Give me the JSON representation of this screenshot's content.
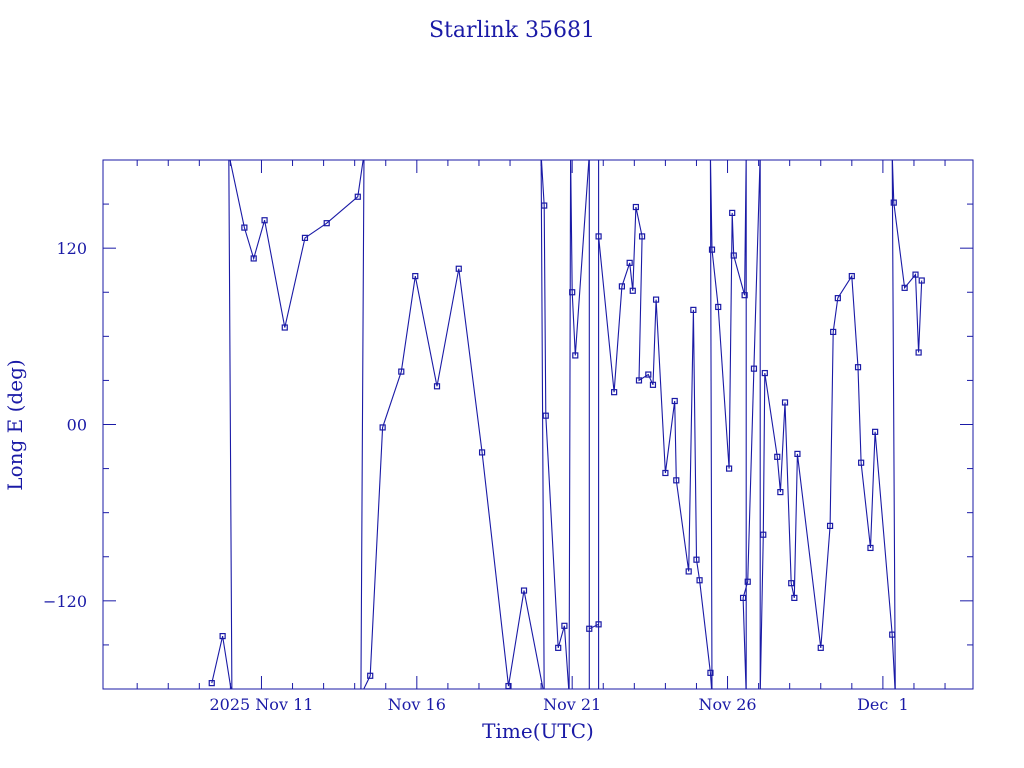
{
  "chart_data": {
    "type": "line",
    "title": "Starlink 35681",
    "xlabel": "Time(UTC)",
    "ylabel": "Long E (deg)",
    "x_tick_labels": [
      "2025 Nov 11",
      "Nov 16",
      "Nov 21",
      "Nov 26",
      "Dec  1"
    ],
    "x_tick_values": [
      0,
      5,
      10,
      15,
      20
    ],
    "x_unit": "days since 2025 Nov 11",
    "xlim": [
      -5.1,
      22.9
    ],
    "y_tick_labels": [
      "120",
      "00",
      "−120"
    ],
    "y_tick_values": [
      120,
      0,
      -120
    ],
    "ylim": [
      -180,
      180
    ],
    "grid": false,
    "color": "#1a1aa6",
    "series": [
      {
        "name": "",
        "points": [
          [
            -1.6,
            -176
          ],
          [
            -1.25,
            -144
          ],
          [
            -0.95,
            -184
          ],
          [
            -1.05,
            184
          ],
          [
            -0.55,
            134
          ],
          [
            -0.25,
            113
          ],
          [
            0.1,
            139
          ],
          [
            0.75,
            66
          ],
          [
            1.4,
            127
          ],
          [
            2.1,
            137
          ],
          [
            3.1,
            155
          ],
          [
            3.3,
            184
          ],
          [
            3.2,
            -184
          ],
          [
            3.5,
            -171
          ],
          [
            3.9,
            -2
          ],
          [
            4.5,
            36
          ],
          [
            4.95,
            101
          ],
          [
            5.65,
            26
          ],
          [
            6.35,
            106
          ],
          [
            7.1,
            -19
          ],
          [
            7.95,
            -178
          ],
          [
            8.45,
            -113
          ],
          [
            9.1,
            -184
          ],
          [
            9.0,
            184
          ],
          [
            9.1,
            149
          ],
          [
            9.15,
            6
          ],
          [
            9.55,
            -152
          ],
          [
            9.75,
            -137
          ],
          [
            9.9,
            -184
          ],
          [
            9.95,
            184
          ],
          [
            10.0,
            90
          ],
          [
            10.1,
            47
          ],
          [
            10.55,
            184
          ],
          [
            10.55,
            -184
          ],
          [
            10.55,
            -139
          ],
          [
            10.85,
            -136
          ],
          [
            10.85,
            -184
          ],
          [
            10.85,
            184
          ],
          [
            10.85,
            128
          ],
          [
            11.35,
            22
          ],
          [
            11.6,
            94
          ],
          [
            11.85,
            110
          ],
          [
            11.95,
            91
          ],
          [
            12.05,
            148
          ],
          [
            12.25,
            128
          ],
          [
            12.15,
            30
          ],
          [
            12.45,
            34
          ],
          [
            12.6,
            27
          ],
          [
            12.7,
            85
          ],
          [
            13.0,
            -33
          ],
          [
            13.3,
            16
          ],
          [
            13.35,
            -38
          ],
          [
            13.75,
            -100
          ],
          [
            13.9,
            78
          ],
          [
            14.0,
            -92
          ],
          [
            14.1,
            -106
          ],
          [
            14.45,
            -169
          ],
          [
            14.5,
            -184
          ],
          [
            14.45,
            184
          ],
          [
            14.5,
            119
          ],
          [
            14.7,
            80
          ],
          [
            15.05,
            -30
          ],
          [
            15.15,
            144
          ],
          [
            15.2,
            115
          ],
          [
            15.55,
            88
          ],
          [
            15.6,
            184
          ],
          [
            15.6,
            -184
          ],
          [
            15.5,
            -118
          ],
          [
            15.65,
            -107
          ],
          [
            15.85,
            38
          ],
          [
            16.05,
            184
          ],
          [
            16.05,
            -184
          ],
          [
            16.15,
            -75
          ],
          [
            16.2,
            35
          ],
          [
            16.6,
            -22
          ],
          [
            16.7,
            -46
          ],
          [
            16.85,
            15
          ],
          [
            17.05,
            -108
          ],
          [
            17.15,
            -118
          ],
          [
            17.25,
            -20
          ],
          [
            18.0,
            -152
          ],
          [
            18.3,
            -69
          ],
          [
            18.4,
            63
          ],
          [
            18.55,
            86
          ],
          [
            19.0,
            101
          ],
          [
            19.2,
            39
          ],
          [
            19.3,
            -26
          ],
          [
            19.6,
            -84
          ],
          [
            19.75,
            -5
          ],
          [
            20.3,
            -143
          ],
          [
            20.4,
            -184
          ],
          [
            20.3,
            184
          ],
          [
            20.35,
            151
          ],
          [
            20.7,
            93
          ],
          [
            21.05,
            102
          ],
          [
            21.15,
            49
          ],
          [
            21.25,
            98
          ]
        ]
      }
    ]
  }
}
